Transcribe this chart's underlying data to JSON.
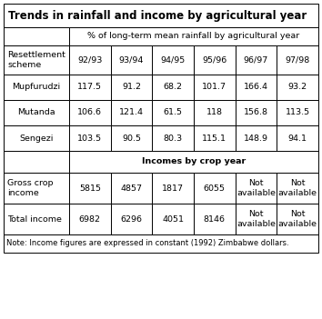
{
  "title": "Trends in rainfall and income by agricultural year",
  "section1_header": "% of long-term mean rainfall by agricultural year",
  "section2_header": "Incomes by crop year",
  "note": "Note: Income figures are expressed in constant (1992) Zimbabwe dollars.",
  "col_headers": [
    "92/93",
    "93/94",
    "94/95",
    "95/96",
    "96/97",
    "97/98"
  ],
  "row1_label": "Resettlement\nscheme",
  "rainfall_rows": [
    {
      "label": "Mupfurudzi",
      "values": [
        "117.5",
        "91.2",
        "68.2",
        "101.7",
        "166.4",
        "93.2"
      ]
    },
    {
      "label": "Mutanda",
      "values": [
        "106.6",
        "121.4",
        "61.5",
        "118",
        "156.8",
        "113.5"
      ]
    },
    {
      "label": "Sengezi",
      "values": [
        "103.5",
        "90.5",
        "80.3",
        "115.1",
        "148.9",
        "94.1"
      ]
    }
  ],
  "income_rows": [
    {
      "label": "Gross crop\nincome",
      "values": [
        "5815",
        "4857",
        "1817",
        "6055",
        "Not\navailable",
        "Not\navailable"
      ]
    },
    {
      "label": "Total income",
      "values": [
        "6982",
        "6296",
        "4051",
        "8146",
        "Not\navailable",
        "Not\navailable"
      ]
    }
  ],
  "bg_color": "#ffffff",
  "title_fontsize": 8.5,
  "header_fontsize": 6.8,
  "cell_fontsize": 6.8,
  "note_fontsize": 6.0
}
